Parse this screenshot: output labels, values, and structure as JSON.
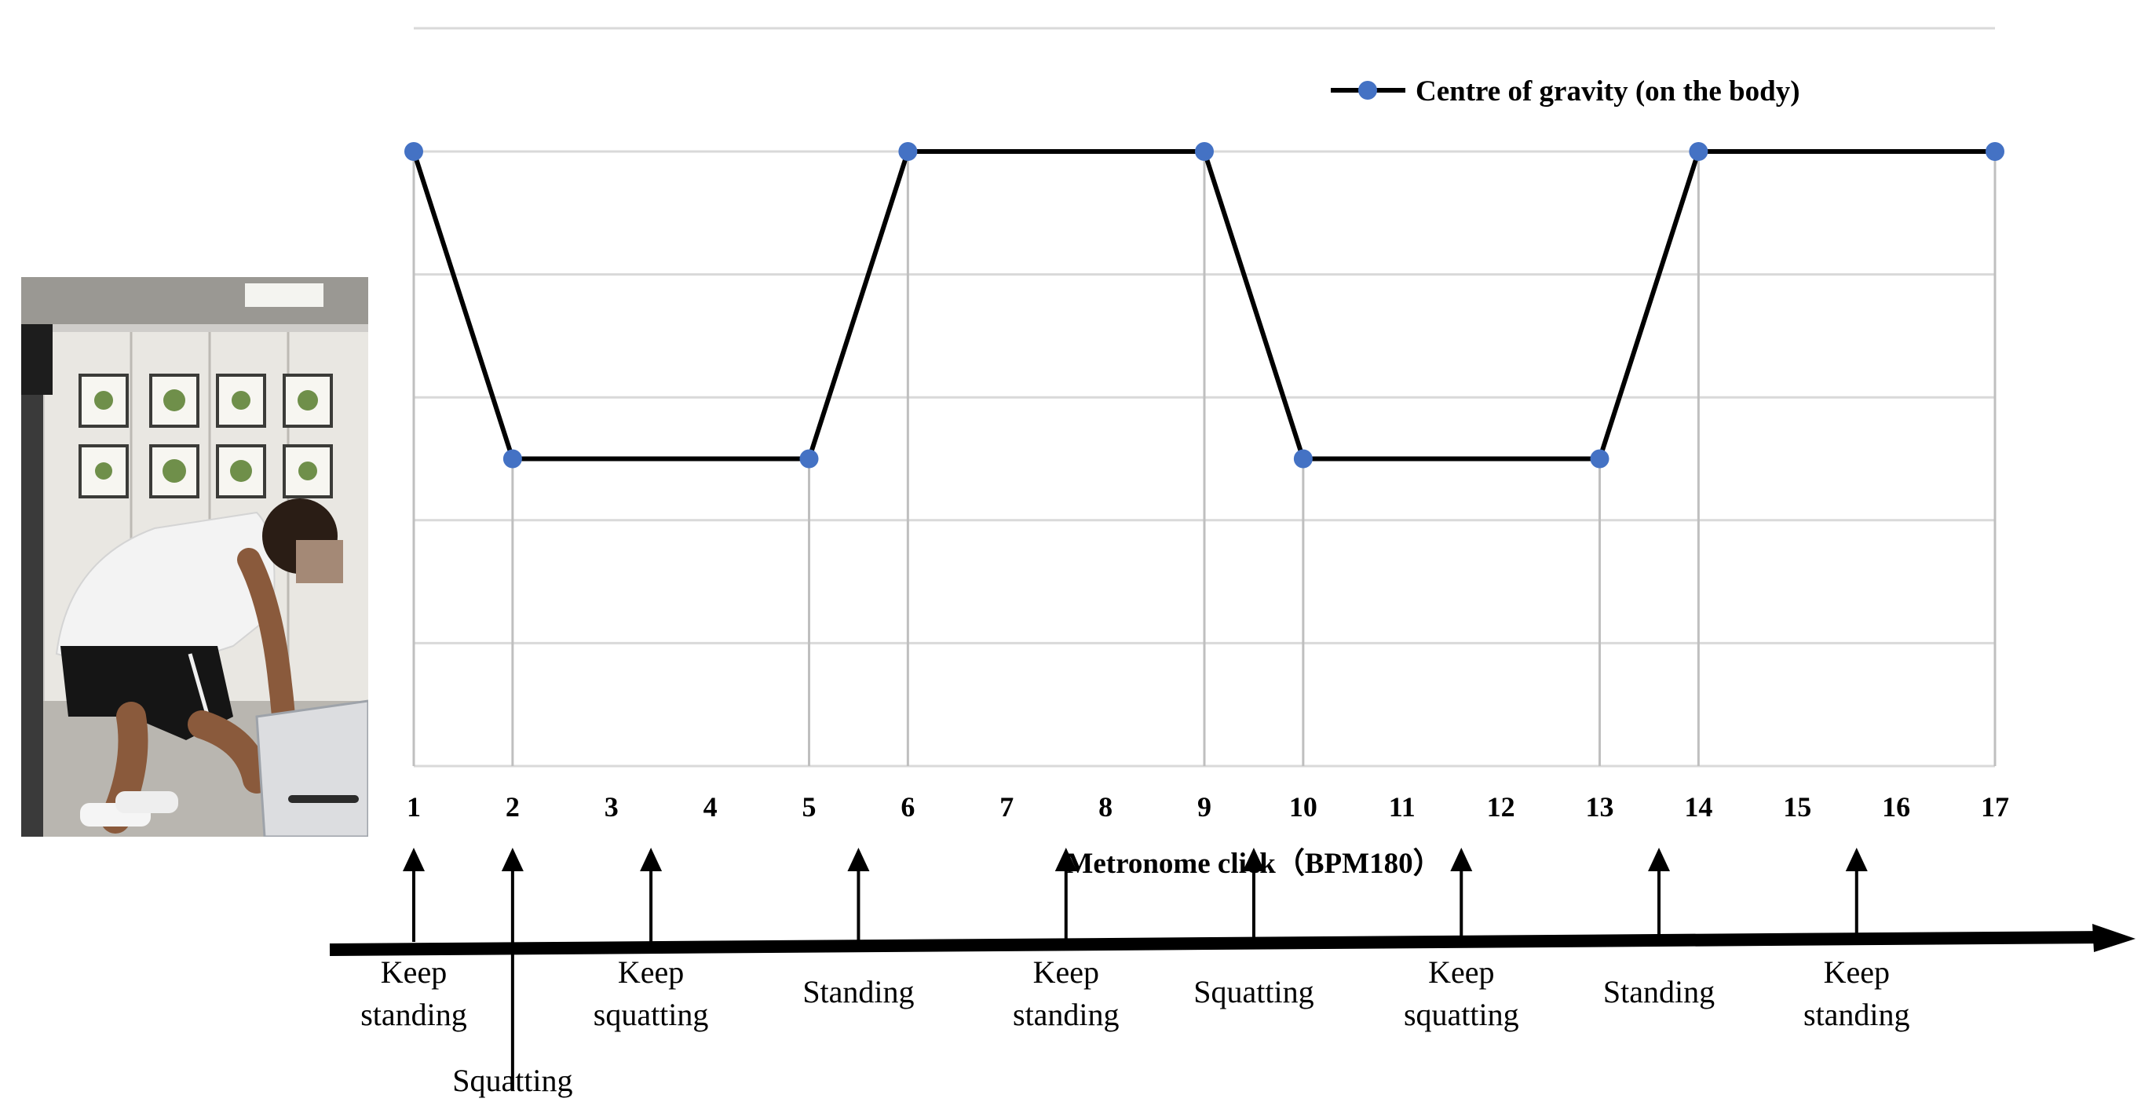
{
  "chart_data": {
    "type": "line",
    "title": "",
    "xlabel": "Metronome click（BPM180）",
    "ylabel": "",
    "categories": [
      "1",
      "2",
      "3",
      "4",
      "5",
      "6",
      "7",
      "8",
      "9",
      "10",
      "11",
      "12",
      "13",
      "14",
      "15",
      "16",
      "17"
    ],
    "series": [
      {
        "name": "Centre of gravity (on the body)",
        "points": [
          {
            "x": 1,
            "y": 5
          },
          {
            "x": 2,
            "y": 2.5
          },
          {
            "x": 5,
            "y": 2.5
          },
          {
            "x": 6,
            "y": 5
          },
          {
            "x": 9,
            "y": 5
          },
          {
            "x": 10,
            "y": 2.5
          },
          {
            "x": 13,
            "y": 2.5
          },
          {
            "x": 14,
            "y": 5
          },
          {
            "x": 17,
            "y": 5
          }
        ],
        "line_color": "#000000",
        "marker_color": "#4472C4"
      }
    ],
    "ylim": [
      0,
      5
    ],
    "yticks_hidden": true,
    "grid": true,
    "grid_color": "#d9d9d9",
    "legend_position": "top-right"
  },
  "timeline": {
    "events": [
      {
        "click": 1,
        "label_lines": [
          "Keep",
          "standing"
        ]
      },
      {
        "click": 2,
        "label_lines": [
          "Squatting"
        ]
      },
      {
        "click": 3.4,
        "label_lines": [
          "Keep",
          "squatting"
        ]
      },
      {
        "click": 5.5,
        "label_lines": [
          "Standing"
        ]
      },
      {
        "click": 7.6,
        "label_lines": [
          "Keep",
          "standing"
        ]
      },
      {
        "click": 9.5,
        "label_lines": [
          "Squatting"
        ]
      },
      {
        "click": 11.6,
        "label_lines": [
          "Keep",
          "squatting"
        ]
      },
      {
        "click": 13.6,
        "label_lines": [
          "Standing"
        ]
      },
      {
        "click": 15.6,
        "label_lines": [
          "Keep",
          "standing"
        ]
      }
    ]
  },
  "photo": {
    "description_icon": "person-lifting-box-photo"
  }
}
